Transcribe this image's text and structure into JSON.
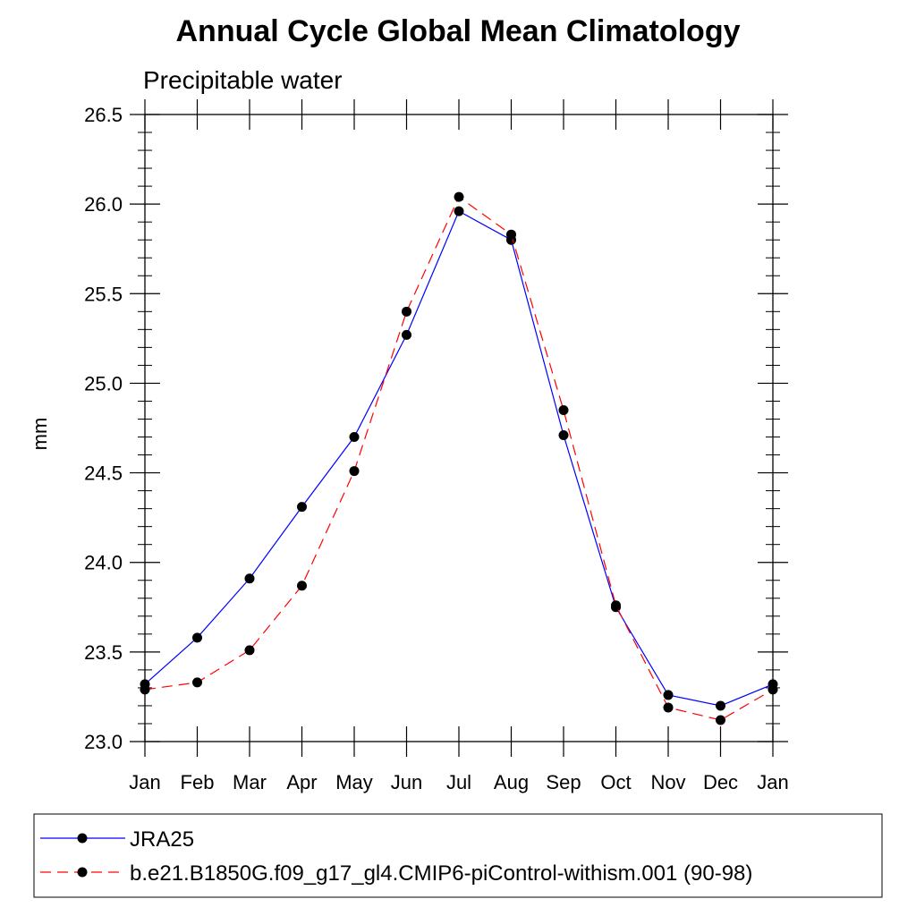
{
  "chart_data": {
    "type": "line",
    "title": "Annual Cycle Global Mean Climatology",
    "subtitle": "Precipitable water",
    "ylabel": "mm",
    "xlabel": "",
    "categories": [
      "Jan",
      "Feb",
      "Mar",
      "Apr",
      "May",
      "Jun",
      "Jul",
      "Aug",
      "Sep",
      "Oct",
      "Nov",
      "Dec",
      "Jan"
    ],
    "ylim": [
      23.0,
      26.5
    ],
    "yticks": [
      "23.0",
      "23.5",
      "24.0",
      "24.5",
      "25.0",
      "25.5",
      "26.0",
      "26.5"
    ],
    "grid": false,
    "legend_position": "bottom",
    "series": [
      {
        "name": "JRA25",
        "color": "#0000ff",
        "line_style": "solid",
        "values": [
          23.32,
          23.58,
          23.91,
          24.31,
          24.7,
          25.27,
          25.96,
          25.8,
          24.71,
          23.75,
          23.26,
          23.2,
          23.32
        ]
      },
      {
        "name": "b.e21.B1850G.f09_g17_gl4.CMIP6-piControl-withism.001 (90-98)",
        "color": "#ff0000",
        "line_style": "dashed",
        "values": [
          23.29,
          23.33,
          23.51,
          23.87,
          24.51,
          25.4,
          26.04,
          25.83,
          24.85,
          23.76,
          23.19,
          23.12,
          23.29
        ]
      }
    ]
  }
}
